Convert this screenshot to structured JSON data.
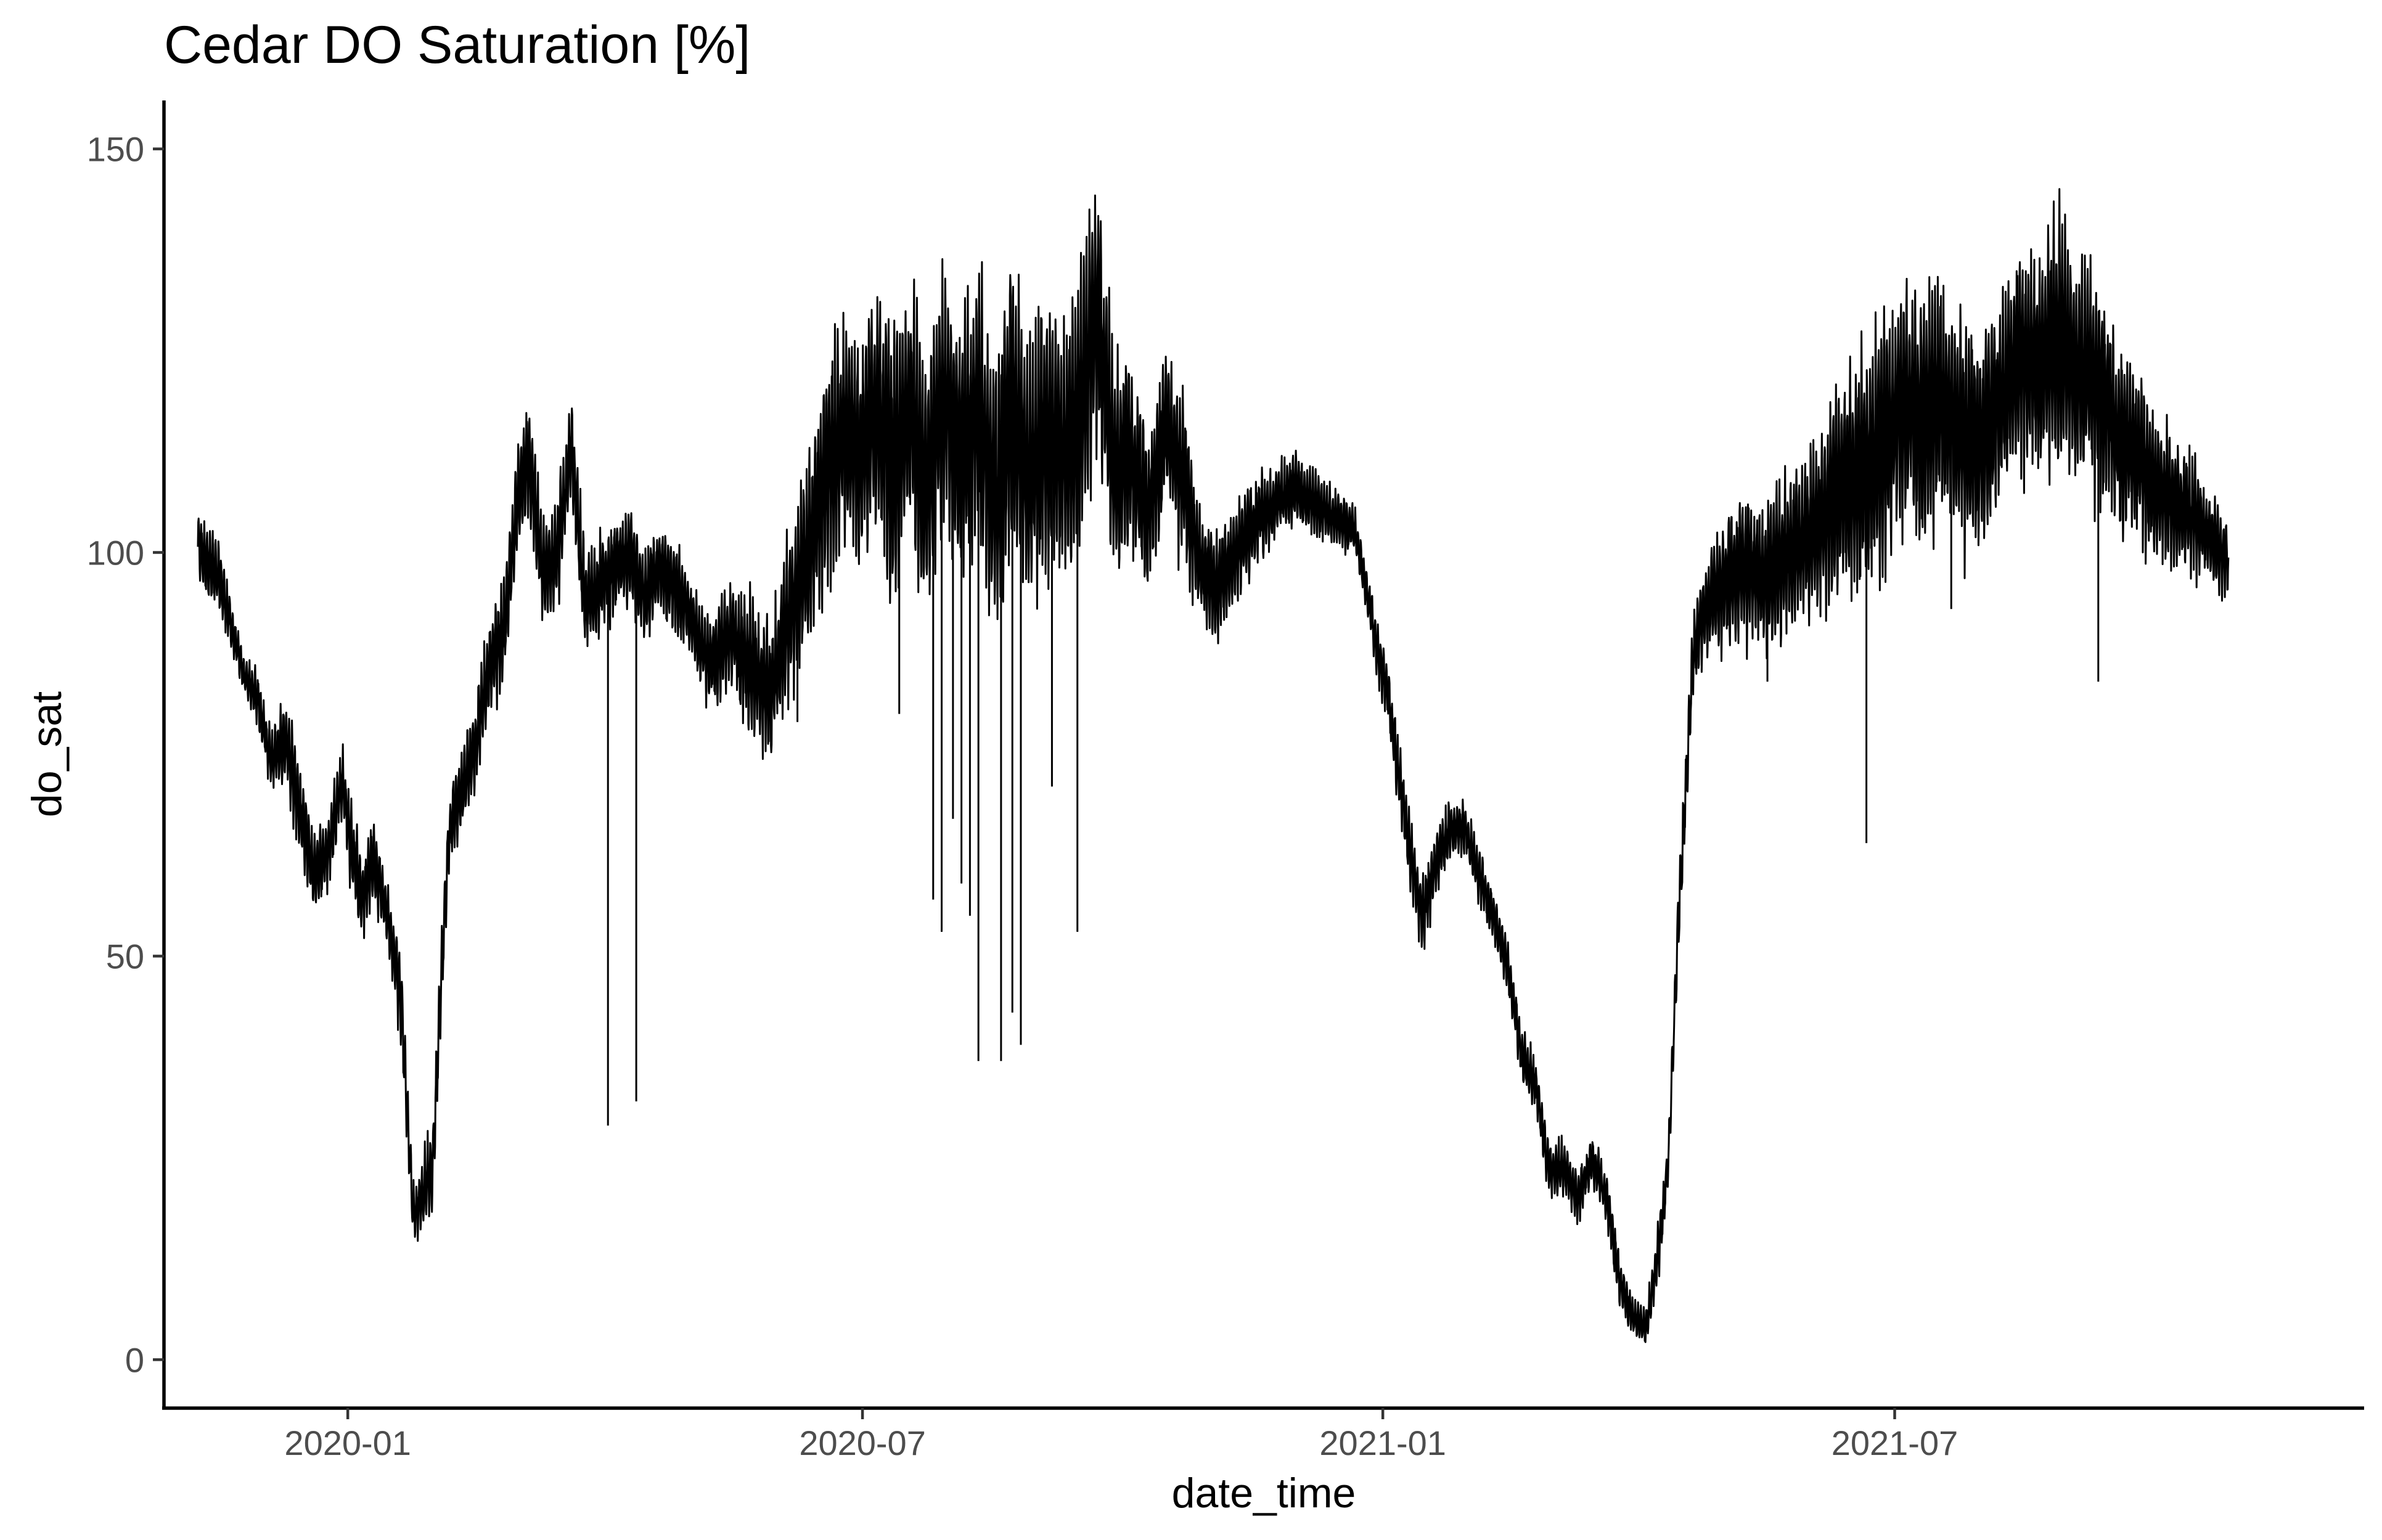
{
  "chart_data": {
    "type": "line",
    "title": "Cedar DO Saturation [%]",
    "xlabel": "date_time",
    "ylabel": "do_sat",
    "x_tick_labels": [
      "2020-01",
      "2020-07",
      "2021-01",
      "2021-07"
    ],
    "x_ticks": [
      "2020-01-01",
      "2020-07-01",
      "2021-01-01",
      "2021-07-01"
    ],
    "y_tick_labels": [
      "0",
      "50",
      "100",
      "150"
    ],
    "y_ticks": [
      0,
      50,
      100,
      150
    ],
    "xlim": [
      "2019-10-28",
      "2021-12-14"
    ],
    "ylim": [
      -6,
      156
    ],
    "grid": false,
    "legend": "none",
    "line_color": "#000000",
    "series": [
      {
        "x": [
          "2019-11-09",
          "2019-11-12",
          "2019-11-16",
          "2019-11-20",
          "2019-11-25",
          "2019-11-30",
          "2019-12-05",
          "2019-12-10",
          "2019-12-15",
          "2019-12-20",
          "2019-12-25",
          "2019-12-30",
          "2020-01-02",
          "2020-01-06",
          "2020-01-10",
          "2020-01-15",
          "2020-01-20",
          "2020-01-24",
          "2020-01-27",
          "2020-01-31",
          "2020-02-03",
          "2020-02-06",
          "2020-02-10",
          "2020-02-15",
          "2020-02-20",
          "2020-02-25",
          "2020-03-01",
          "2020-03-05",
          "2020-03-10",
          "2020-03-15",
          "2020-03-20",
          "2020-03-25",
          "2020-03-30",
          "2020-04-05",
          "2020-04-10",
          "2020-04-15",
          "2020-04-20",
          "2020-04-25",
          "2020-05-01",
          "2020-05-08",
          "2020-05-15",
          "2020-05-22",
          "2020-05-29",
          "2020-06-05",
          "2020-06-12",
          "2020-06-18",
          "2020-06-24",
          "2020-06-30",
          "2020-07-06",
          "2020-07-12",
          "2020-07-18",
          "2020-07-24",
          "2020-07-30",
          "2020-08-05",
          "2020-08-11",
          "2020-08-17",
          "2020-08-23",
          "2020-08-29",
          "2020-09-04",
          "2020-09-10",
          "2020-09-16",
          "2020-09-22",
          "2020-09-28",
          "2020-10-04",
          "2020-10-10",
          "2020-10-16",
          "2020-10-22",
          "2020-10-28",
          "2020-11-03",
          "2020-11-10",
          "2020-11-17",
          "2020-11-24",
          "2020-12-01",
          "2020-12-08",
          "2020-12-15",
          "2020-12-22",
          "2020-12-26",
          "2020-12-30",
          "2021-01-03",
          "2021-01-07",
          "2021-01-11",
          "2021-01-15",
          "2021-01-20",
          "2021-01-25",
          "2021-01-30",
          "2021-02-04",
          "2021-02-09",
          "2021-02-14",
          "2021-02-19",
          "2021-02-24",
          "2021-03-01",
          "2021-03-06",
          "2021-03-11",
          "2021-03-16",
          "2021-03-21",
          "2021-03-26",
          "2021-03-31",
          "2021-04-04",
          "2021-04-08",
          "2021-04-12",
          "2021-04-16",
          "2021-04-21",
          "2021-04-26",
          "2021-05-01",
          "2021-05-08",
          "2021-05-15",
          "2021-05-22",
          "2021-05-29",
          "2021-06-05",
          "2021-06-12",
          "2021-06-19",
          "2021-06-26",
          "2021-07-03",
          "2021-07-10",
          "2021-07-17",
          "2021-07-24",
          "2021-07-31",
          "2021-08-07",
          "2021-08-14",
          "2021-08-21",
          "2021-08-28",
          "2021-09-04",
          "2021-09-11",
          "2021-09-18",
          "2021-09-25",
          "2021-10-02",
          "2021-10-09",
          "2021-10-16",
          "2021-10-23",
          "2021-10-27"
        ],
        "y": [
          101,
          99,
          97,
          92,
          85,
          82,
          74,
          77,
          68,
          60,
          63,
          72,
          64,
          57,
          62,
          55,
          44,
          18,
          20,
          24,
          47,
          66,
          70,
          76,
          86,
          90,
          106,
          112,
          97,
          100,
          113,
          93,
          96,
          98,
          100,
          94,
          98,
          96,
          92,
          86,
          90,
          86,
          82,
          92,
          100,
          110,
          114,
          112,
          118,
          110,
          117,
          108,
          120,
          112,
          118,
          105,
          120,
          108,
          115,
          111,
          118,
          130,
          110,
          112,
          105,
          116,
          110,
          99,
          95,
          100,
          104,
          106,
          108,
          106,
          104,
          103,
          96,
          88,
          82,
          72,
          62,
          55,
          62,
          66,
          66,
          60,
          55,
          49,
          38,
          34,
          23,
          24,
          20,
          25,
          20,
          9,
          5,
          4,
          12,
          25,
          58,
          88,
          94,
          96,
          98,
          97,
          99,
          101,
          104,
          108,
          110,
          113,
          118,
          116,
          118,
          115,
          114,
          118,
          124,
          123,
          126,
          122,
          121,
          114,
          112,
          108,
          106,
          104,
          101,
          99
        ],
        "band": [
          3,
          4,
          4,
          3,
          2,
          3,
          3,
          5,
          5,
          4,
          4,
          4,
          5,
          4,
          5,
          3,
          5,
          3,
          4,
          5,
          4,
          4,
          5,
          5,
          5,
          6,
          6,
          7,
          6,
          6,
          6,
          6,
          5,
          5,
          5,
          5,
          5,
          5,
          4,
          5,
          6,
          8,
          8,
          9,
          10,
          12,
          13,
          14,
          14,
          14,
          14,
          15,
          14,
          15,
          15,
          16,
          16,
          15,
          16,
          14,
          15,
          14,
          13,
          11,
          8,
          9,
          10,
          6,
          6,
          5,
          5,
          4,
          4,
          4,
          3,
          3,
          3,
          3,
          3,
          4,
          4,
          4,
          4,
          3,
          3,
          3,
          3,
          3,
          3,
          3,
          3,
          3,
          3,
          3,
          3,
          3,
          2,
          2,
          3,
          3,
          4,
          5,
          6,
          7,
          8,
          8,
          9,
          9,
          10,
          12,
          13,
          14,
          14,
          14,
          14,
          13,
          13,
          12,
          12,
          13,
          14,
          13,
          12,
          11,
          9,
          8,
          7,
          6,
          5,
          4
        ]
      }
    ],
    "spikes": [
      {
        "x": "2020-04-02",
        "y": 29
      },
      {
        "x": "2020-04-12",
        "y": 32
      },
      {
        "x": "2020-06-08",
        "y": 79
      },
      {
        "x": "2020-07-14",
        "y": 80
      },
      {
        "x": "2020-07-26",
        "y": 57
      },
      {
        "x": "2020-07-29",
        "y": 53
      },
      {
        "x": "2020-08-02",
        "y": 67
      },
      {
        "x": "2020-08-05",
        "y": 59
      },
      {
        "x": "2020-08-08",
        "y": 55
      },
      {
        "x": "2020-08-11",
        "y": 37
      },
      {
        "x": "2020-08-19",
        "y": 37
      },
      {
        "x": "2020-08-23",
        "y": 43
      },
      {
        "x": "2020-08-26",
        "y": 39
      },
      {
        "x": "2020-09-06",
        "y": 71
      },
      {
        "x": "2020-09-15",
        "y": 53
      },
      {
        "x": "2021-06-21",
        "y": 64
      },
      {
        "x": "2021-09-11",
        "y": 84
      },
      {
        "x": "2021-07-21",
        "y": 93
      },
      {
        "x": "2021-05-17",
        "y": 84
      }
    ]
  }
}
